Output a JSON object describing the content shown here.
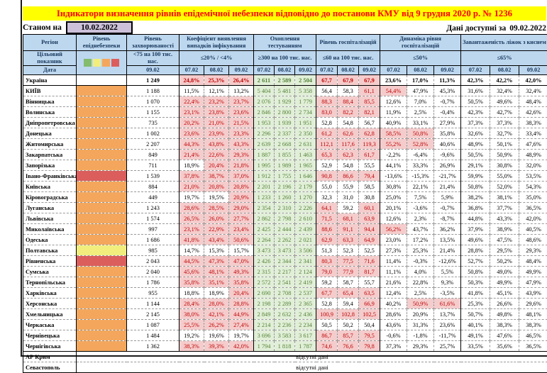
{
  "title": "Індикатори визначення рівнів епідемічної небезпеки відповідно до постанови КМУ від 9 грудня 2020 р. № 1236",
  "as_of": {
    "label": "Станом на",
    "date": "10.02.2022"
  },
  "available": {
    "label": "Дані доступні за",
    "date": "09.02.2022"
  },
  "colors": {
    "title_bg": "#FFFF00",
    "title_text": "#FF0000",
    "header_bg": "#BDD7EE",
    "header_text": "#17375E",
    "asof_box_bg": "#CCC0DA",
    "level_green": "#84BC6E",
    "level_yellow": "#F1EE7E",
    "level_orange": "#F4A75C",
    "level_red": "#DC5E5C",
    "fail_bg": "#F5CCCC",
    "fail_text": "#C00000",
    "good_bg": "#E1EFD8",
    "good_text": "#538135"
  },
  "table": {
    "region_header": "Регіон",
    "danger_header": "Рівень епіднебезпеки",
    "target_row_label": "Цільовий показник",
    "date_row_label": "Дата",
    "legend_colors": [
      "#84BC6E",
      "#F1EE7E",
      "#F4A75C",
      "#DC5E5C"
    ],
    "groups": [
      {
        "label": "Рівень захворюваності",
        "target": "<75 на 100 тис. нас.",
        "dates": [
          "09.02"
        ]
      },
      {
        "label": "Коефіцієнт виявлення випадків інфікування",
        "target": "≤20% / <4%",
        "dates": [
          "07.02",
          "08.02",
          "09.02"
        ]
      },
      {
        "label": "Охоплення тестуванням",
        "target": "≥300 на 100 тис. нас.",
        "dates": [
          "07.02",
          "08.02",
          "09.02"
        ]
      },
      {
        "label": "Рівень госпіталізацій",
        "target": "≤60 на 100 тис. нас.",
        "dates": [
          "07.02",
          "08.02",
          "09.02"
        ]
      },
      {
        "label": "Динаміка рівня госпіталізацій",
        "target": "≤50%",
        "dates": [
          "07.02",
          "08.02",
          "09.02"
        ]
      },
      {
        "label": "Завантаженість ліжок з киснем",
        "target": "≤65%",
        "dates": [
          "07.02",
          "08.02",
          "09.02"
        ]
      }
    ],
    "thresholds": {
      "coef": 20,
      "hosp": 60,
      "dyn": 50,
      "bed": 65
    },
    "rows": [
      {
        "name": "Україна",
        "level": "none",
        "bold": true,
        "incidence": "1 249",
        "coef": [
          "24,8%",
          "25,3%",
          "26,4%"
        ],
        "test": [
          "2 611",
          "2 589",
          "2 504"
        ],
        "hosp": [
          "67,7",
          "67,9",
          "67,9"
        ],
        "dyn": [
          "23,6%",
          "17,0%",
          "11,3%"
        ],
        "bed": [
          "42,3%",
          "42,2%",
          "42,0%"
        ]
      },
      {
        "name": "КИЇВ",
        "level": "orange",
        "incidence": "1 188",
        "coef": [
          "11,5%",
          "12,1%",
          "13,2%"
        ],
        "test": [
          "5 404",
          "5 481",
          "5 358"
        ],
        "hosp": [
          "56,4",
          "58,3",
          "61,1"
        ],
        "dyn": [
          "54,4%",
          "47,9%",
          "45,3%"
        ],
        "bed": [
          "31,6%",
          "32,4%",
          "32,4%"
        ]
      },
      {
        "name": "Вінницька",
        "level": "orange",
        "incidence": "1 070",
        "coef": [
          "22,4%",
          "23,2%",
          "23,7%"
        ],
        "test": [
          "2 076",
          "1 929",
          "1 779"
        ],
        "hosp": [
          "88,3",
          "88,4",
          "85,5"
        ],
        "dyn": [
          "12,6%",
          "7,0%",
          "-0,7%"
        ],
        "bed": [
          "50,5%",
          "49,6%",
          "48,4%"
        ]
      },
      {
        "name": "Волинська",
        "level": "orange",
        "incidence": "1 155",
        "coef": [
          "23,1%",
          "23,8%",
          "23,6%"
        ],
        "test": [
          "2 846",
          "2 800",
          "2 734"
        ],
        "hosp": [
          "83,0",
          "82,2",
          "82,1"
        ],
        "dyn": [
          "11,9%",
          "2,5%",
          "-0,4%"
        ],
        "bed": [
          "42,3%",
          "42,7%",
          "42,6%"
        ]
      },
      {
        "name": "Дніпропетровська",
        "level": "orange",
        "incidence": "735",
        "coef": [
          "20,2%",
          "21,0%",
          "21,5%"
        ],
        "test": [
          "1 953",
          "1 939",
          "1 951"
        ],
        "hosp": [
          "52,8",
          "54,8",
          "56,7"
        ],
        "dyn": [
          "40,9%",
          "33,1%",
          "27,9%"
        ],
        "bed": [
          "37,3%",
          "37,3%",
          "38,3%"
        ]
      },
      {
        "name": "Донецька",
        "level": "orange",
        "incidence": "1 002",
        "coef": [
          "23,6%",
          "23,9%",
          "23,3%"
        ],
        "test": [
          "2 296",
          "2 337",
          "2 350"
        ],
        "hosp": [
          "61,2",
          "62,6",
          "62,8"
        ],
        "dyn": [
          "58,5%",
          "50,8%",
          "35,8%"
        ],
        "bed": [
          "32,6%",
          "32,7%",
          "33,4%"
        ]
      },
      {
        "name": "Житомирська",
        "level": "orange",
        "incidence": "2 207",
        "coef": [
          "44,3%",
          "43,8%",
          "43,3%"
        ],
        "test": [
          "2 639",
          "2 668",
          "2 631"
        ],
        "hosp": [
          "112,1",
          "117,6",
          "119,3"
        ],
        "dyn": [
          "55,2%",
          "52,8%",
          "40,6%"
        ],
        "bed": [
          "48,9%",
          "50,1%",
          "47,6%"
        ]
      },
      {
        "name": "Закарпатська",
        "level": "orange",
        "incidence": "849",
        "coef": [
          "21,4%",
          "22,6%",
          "29,3%"
        ],
        "test": [
          "1 887",
          "1 855",
          "1 463"
        ],
        "hosp": [
          "65,3",
          "62,3",
          "61,7"
        ],
        "dyn": [
          "-2,2%",
          "-6,4%",
          "-9,6%"
        ],
        "bed": [
          "50,5%",
          "50,9%",
          "48,9%"
        ]
      },
      {
        "name": "Запорізька",
        "level": "orange",
        "incidence": "711",
        "coef": [
          "18,9%",
          "20,4%",
          "21,8%"
        ],
        "test": [
          "1 995",
          "1 989",
          "1 965"
        ],
        "hosp": [
          "52,9",
          "54,8",
          "55,5"
        ],
        "dyn": [
          "44,1%",
          "33,3%",
          "26,9%"
        ],
        "bed": [
          "29,1%",
          "30,8%",
          "32,0%"
        ]
      },
      {
        "name": "Івано-Франківська",
        "level": "red",
        "incidence": "1 539",
        "coef": [
          "37,8%",
          "38,7%",
          "37,0%"
        ],
        "test": [
          "1 912",
          "1 755",
          "1 646"
        ],
        "hosp": [
          "90,8",
          "86,6",
          "79,4"
        ],
        "dyn": [
          "-13,6%",
          "-15,3%",
          "-21,7%"
        ],
        "bed": [
          "59,9%",
          "55,0%",
          "53,5%"
        ]
      },
      {
        "name": "Київська",
        "level": "orange",
        "incidence": "884",
        "coef": [
          "21,0%",
          "20,8%",
          "20,8%"
        ],
        "test": [
          "2 201",
          "2 196",
          "2 179"
        ],
        "hosp": [
          "55,0",
          "55,9",
          "58,5"
        ],
        "dyn": [
          "30,8%",
          "22,1%",
          "21,4%"
        ],
        "bed": [
          "50,8%",
          "52,0%",
          "54,3%"
        ]
      },
      {
        "name": "Кіровоградська",
        "level": "orange",
        "incidence": "449",
        "coef": [
          "19,7%",
          "19,5%",
          "20,9%"
        ],
        "test": [
          "1 233",
          "1 260",
          "1 270"
        ],
        "hosp": [
          "32,3",
          "31,0",
          "30,8"
        ],
        "dyn": [
          "25,0%",
          "7,5%",
          "5,9%"
        ],
        "bed": [
          "38,2%",
          "38,1%",
          "35,0%"
        ]
      },
      {
        "name": "Луганська",
        "level": "orange",
        "incidence": "1 243",
        "coef": [
          "28,6%",
          "28,5%",
          "29,0%"
        ],
        "test": [
          "2 354",
          "2 310",
          "2 226"
        ],
        "hosp": [
          "64,1",
          "59,2",
          "60,1"
        ],
        "dyn": [
          "20,1%",
          "-3,6%",
          "-0,7%"
        ],
        "bed": [
          "36,8%",
          "37,7%",
          "36,5%"
        ]
      },
      {
        "name": "Львівська",
        "level": "orange",
        "incidence": "1 574",
        "coef": [
          "26,5%",
          "26,0%",
          "27,7%"
        ],
        "test": [
          "2 862",
          "2 798",
          "2 610"
        ],
        "hosp": [
          "71,5",
          "68,1",
          "63,9"
        ],
        "dyn": [
          "12,6%",
          "2,3%",
          "-8,7%"
        ],
        "bed": [
          "44,8%",
          "43,3%",
          "42,0%"
        ]
      },
      {
        "name": "Миколаївська",
        "level": "orange",
        "incidence": "997",
        "coef": [
          "23,1%",
          "22,9%",
          "23,4%"
        ],
        "test": [
          "2 425",
          "2 444",
          "2 439"
        ],
        "hosp": [
          "88,6",
          "91,1",
          "94,4"
        ],
        "dyn": [
          "56,2%",
          "43,7%",
          "36,2%"
        ],
        "bed": [
          "37,9%",
          "38,9%",
          "40,5%"
        ]
      },
      {
        "name": "Одеська",
        "level": "orange",
        "incidence": "1 686",
        "coef": [
          "41,8%",
          "43,4%",
          "50,6%"
        ],
        "test": [
          "2 264",
          "2 262",
          "2 021"
        ],
        "hosp": [
          "62,9",
          "63,3",
          "64,9"
        ],
        "dyn": [
          "23,0%",
          "17,2%",
          "13,5%"
        ],
        "bed": [
          "49,6%",
          "47,5%",
          "48,6%"
        ]
      },
      {
        "name": "Полтавська",
        "level": "yellow",
        "incidence": "985",
        "coef": [
          "14,7%",
          "15,3%",
          "15,7%"
        ],
        "test": [
          "3 473",
          "3 473",
          "3 506"
        ],
        "hosp": [
          "51,3",
          "52,3",
          "52,5"
        ],
        "dyn": [
          "27,3%",
          "25,3%",
          "21,4%"
        ],
        "bed": [
          "28,8%",
          "29,5%",
          "29,3%"
        ]
      },
      {
        "name": "Рівненська",
        "level": "red",
        "incidence": "2 043",
        "coef": [
          "44,5%",
          "47,3%",
          "47,0%"
        ],
        "test": [
          "2 426",
          "2 344",
          "2 341"
        ],
        "hosp": [
          "80,3",
          "77,5",
          "71,6"
        ],
        "dyn": [
          "11,4%",
          "-0,3%",
          "-12,6%"
        ],
        "bed": [
          "52,7%",
          "50,2%",
          "48,4%"
        ]
      },
      {
        "name": "Сумська",
        "level": "orange",
        "incidence": "2 040",
        "coef": [
          "45,6%",
          "48,1%",
          "49,3%"
        ],
        "test": [
          "2 315",
          "2 217",
          "2 124"
        ],
        "hosp": [
          "79,0",
          "77,9",
          "81,7"
        ],
        "dyn": [
          "11,1%",
          "4,0%",
          "5,5%"
        ],
        "bed": [
          "50,8%",
          "49,0%",
          "49,9%"
        ]
      },
      {
        "name": "Тернопільська",
        "level": "orange",
        "incidence": "1 786",
        "coef": [
          "35,8%",
          "35,1%",
          "35,8%"
        ],
        "test": [
          "2 572",
          "2 541",
          "2 419"
        ],
        "hosp": [
          "59,2",
          "58,7",
          "55,7"
        ],
        "dyn": [
          "21,6%",
          "22,8%",
          "9,3%"
        ],
        "bed": [
          "50,3%",
          "49,9%",
          "47,9%"
        ]
      },
      {
        "name": "Харківська",
        "level": "orange",
        "incidence": "955",
        "coef": [
          "18,8%",
          "18,9%",
          "20,4%"
        ],
        "test": [
          "2 690",
          "2 708",
          "2 537"
        ],
        "hosp": [
          "67,7",
          "65,4",
          "63,5"
        ],
        "dyn": [
          "12,4%",
          "2,5%",
          "-3,5%"
        ],
        "bed": [
          "41,8%",
          "45,1%",
          "43,9%"
        ]
      },
      {
        "name": "Херсонська",
        "level": "orange",
        "incidence": "1 144",
        "coef": [
          "28,4%",
          "28,0%",
          "28,8%"
        ],
        "test": [
          "2 198",
          "2 289",
          "2 365"
        ],
        "hosp": [
          "52,8",
          "59,4",
          "66,9"
        ],
        "dyn": [
          "40,2%",
          "50,9%",
          "61,6%"
        ],
        "bed": [
          "25,3%",
          "26,6%",
          "29,6%"
        ]
      },
      {
        "name": "Хмельницька",
        "level": "orange",
        "incidence": "2 145",
        "coef": [
          "38,0%",
          "42,1%",
          "44,9%"
        ],
        "test": [
          "2 849",
          "2 632",
          "2 436"
        ],
        "hosp": [
          "100,9",
          "102,8",
          "102,5"
        ],
        "dyn": [
          "28,6%",
          "20,9%",
          "13,7%"
        ],
        "bed": [
          "50,7%",
          "49,8%",
          "48,1%"
        ]
      },
      {
        "name": "Черкаська",
        "level": "orange",
        "incidence": "1 087",
        "coef": [
          "25,5%",
          "26,2%",
          "27,4%"
        ],
        "test": [
          "2 214",
          "2 236",
          "2 234"
        ],
        "hosp": [
          "50,5",
          "50,2",
          "50,4"
        ],
        "dyn": [
          "43,6%",
          "31,3%",
          "23,6%"
        ],
        "bed": [
          "40,1%",
          "38,3%",
          "38,3%"
        ]
      },
      {
        "name": "Чернівецька",
        "level": "orange",
        "incidence": "1 484",
        "coef": [
          "19,2%",
          "19,6%",
          "19,7%"
        ],
        "test": [
          "3 696",
          "3 583",
          "3 617"
        ],
        "hosp": [
          "86,7",
          "85,7",
          "79,5"
        ],
        "dyn": [
          "-0,6%",
          "-1,8%",
          "-11,7%"
        ],
        "bed": [
          "49,1%",
          "47,6%",
          "46,5%"
        ]
      },
      {
        "name": "Чернігівська",
        "level": "orange",
        "incidence": "1 362",
        "coef": [
          "38,3%",
          "39,3%",
          "42,0%"
        ],
        "test": [
          "1 794",
          "1 818",
          "1 787"
        ],
        "hosp": [
          "74,6",
          "76,6",
          "79,8"
        ],
        "dyn": [
          "37,3%",
          "29,3%",
          "25,7%"
        ],
        "bed": [
          "33,5%",
          "35,6%",
          "36,5%"
        ]
      }
    ],
    "no_data_rows": [
      {
        "name": "АР Крим",
        "note": "відсутні дані"
      },
      {
        "name": "Севастополь",
        "note": "відсутні дані"
      }
    ]
  }
}
